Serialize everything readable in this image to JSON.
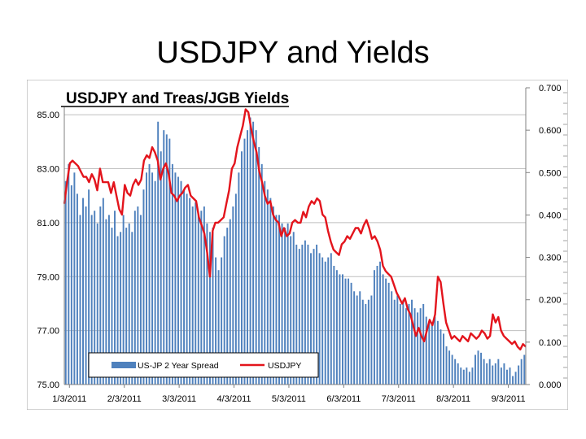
{
  "slide": {
    "title": "USDJPY and Yields"
  },
  "chart_data": {
    "type": "bar+line",
    "title": "USDJPY and Treas/JGB Yields",
    "legend": {
      "position": "bottom-center",
      "entries": [
        "US-JP 2 Year Spread",
        "USDJPY"
      ]
    },
    "colors": {
      "bar": "#4F81BD",
      "line": "#E3141C",
      "grid": "#BFBFBF",
      "axis": "#808080"
    },
    "x_labels": [
      "1/3/2011",
      "2/3/2011",
      "3/3/2011",
      "4/3/2011",
      "5/3/2011",
      "6/3/2011",
      "7/3/2011",
      "8/3/2011",
      "9/3/2011"
    ],
    "y_left": {
      "label": "USDJPY",
      "min": 75,
      "max": 86,
      "ticks": [
        "75.00",
        "77.00",
        "79.00",
        "81.00",
        "83.00",
        "85.00"
      ],
      "tick_values": [
        75,
        77,
        79,
        81,
        83,
        85
      ]
    },
    "y_right": {
      "label": "US-JP 2 Year Spread",
      "min": 0,
      "max": 0.7,
      "ticks": [
        "0.000",
        "0.100",
        "0.200",
        "0.300",
        "0.400",
        "0.500",
        "0.600",
        "0.700"
      ],
      "tick_values": [
        0,
        0.1,
        0.2,
        0.3,
        0.4,
        0.5,
        0.6,
        0.7
      ]
    },
    "usdjpy_path": [
      [
        0,
        81.7
      ],
      [
        1,
        82.5
      ],
      [
        2,
        83.2
      ],
      [
        3,
        83.3
      ],
      [
        5,
        83.1
      ],
      [
        6,
        82.9
      ],
      [
        7,
        82.7
      ],
      [
        8,
        82.7
      ],
      [
        9,
        82.5
      ],
      [
        10,
        82.8
      ],
      [
        11,
        82.6
      ],
      [
        12,
        82.2
      ],
      [
        13,
        83.0
      ],
      [
        14,
        82.5
      ],
      [
        16,
        82.5
      ],
      [
        17,
        82.1
      ],
      [
        18,
        82.5
      ],
      [
        19,
        82.0
      ],
      [
        20,
        81.5
      ],
      [
        21,
        81.3
      ],
      [
        22,
        82.4
      ],
      [
        23,
        82.1
      ],
      [
        24,
        82.0
      ],
      [
        25,
        82.4
      ],
      [
        26,
        82.6
      ],
      [
        27,
        82.4
      ],
      [
        28,
        82.6
      ],
      [
        29,
        83.3
      ],
      [
        30,
        83.5
      ],
      [
        31,
        83.4
      ],
      [
        32,
        83.8
      ],
      [
        33,
        83.6
      ],
      [
        34,
        83.3
      ],
      [
        35,
        82.6
      ],
      [
        36,
        83.0
      ],
      [
        37,
        83.2
      ],
      [
        38,
        82.8
      ],
      [
        39,
        82.1
      ],
      [
        40,
        82.0
      ],
      [
        41,
        81.8
      ],
      [
        42,
        82.0
      ],
      [
        43,
        82.1
      ],
      [
        44,
        82.3
      ],
      [
        45,
        82.4
      ],
      [
        46,
        82.0
      ],
      [
        47,
        81.9
      ],
      [
        48,
        81.8
      ],
      [
        49,
        81.2
      ],
      [
        50,
        80.9
      ],
      [
        51,
        80.6
      ],
      [
        52,
        79.9
      ],
      [
        53,
        79.0
      ],
      [
        54,
        80.7
      ],
      [
        55,
        81.0
      ],
      [
        56,
        81.0
      ],
      [
        57,
        81.1
      ],
      [
        58,
        81.2
      ],
      [
        59,
        81.7
      ],
      [
        60,
        82.2
      ],
      [
        61,
        83.0
      ],
      [
        62,
        83.2
      ],
      [
        63,
        83.8
      ],
      [
        64,
        84.2
      ],
      [
        65,
        84.6
      ],
      [
        66,
        85.2
      ],
      [
        67,
        85.1
      ],
      [
        68,
        84.5
      ],
      [
        69,
        84.0
      ],
      [
        70,
        83.6
      ],
      [
        71,
        82.9
      ],
      [
        72,
        82.5
      ],
      [
        73,
        82.0
      ],
      [
        74,
        81.7
      ],
      [
        75,
        81.8
      ],
      [
        76,
        81.3
      ],
      [
        77,
        81.1
      ],
      [
        78,
        81.0
      ],
      [
        79,
        80.5
      ],
      [
        80,
        80.8
      ],
      [
        81,
        80.5
      ],
      [
        82,
        80.6
      ],
      [
        83,
        81.0
      ],
      [
        84,
        81.1
      ],
      [
        85,
        81.0
      ],
      [
        86,
        81.0
      ],
      [
        87,
        81.4
      ],
      [
        88,
        81.2
      ],
      [
        89,
        81.6
      ],
      [
        90,
        81.8
      ],
      [
        91,
        81.7
      ],
      [
        92,
        81.9
      ],
      [
        93,
        81.8
      ],
      [
        94,
        81.3
      ],
      [
        95,
        81.2
      ],
      [
        96,
        80.7
      ],
      [
        97,
        80.3
      ],
      [
        98,
        80.0
      ],
      [
        99,
        79.9
      ],
      [
        100,
        79.8
      ],
      [
        101,
        80.2
      ],
      [
        102,
        80.3
      ],
      [
        103,
        80.5
      ],
      [
        104,
        80.4
      ],
      [
        105,
        80.6
      ],
      [
        106,
        80.8
      ],
      [
        107,
        80.8
      ],
      [
        108,
        80.6
      ],
      [
        109,
        80.9
      ],
      [
        110,
        81.1
      ],
      [
        111,
        80.8
      ],
      [
        112,
        80.4
      ],
      [
        113,
        80.5
      ],
      [
        114,
        80.3
      ],
      [
        115,
        80.0
      ],
      [
        116,
        79.4
      ],
      [
        117,
        79.2
      ],
      [
        118,
        79.1
      ],
      [
        119,
        79.0
      ],
      [
        120,
        78.7
      ],
      [
        121,
        78.4
      ],
      [
        122,
        78.2
      ],
      [
        123,
        78.0
      ],
      [
        124,
        78.2
      ],
      [
        125,
        77.8
      ],
      [
        126,
        77.6
      ],
      [
        127,
        77.2
      ],
      [
        128,
        76.8
      ],
      [
        129,
        77.1
      ],
      [
        130,
        76.8
      ],
      [
        131,
        76.6
      ],
      [
        132,
        77.0
      ],
      [
        133,
        77.4
      ],
      [
        134,
        77.2
      ],
      [
        135,
        77.6
      ],
      [
        136,
        79.0
      ],
      [
        137,
        78.8
      ],
      [
        138,
        78.0
      ],
      [
        139,
        77.3
      ],
      [
        140,
        77.0
      ],
      [
        141,
        76.7
      ],
      [
        142,
        76.8
      ],
      [
        143,
        76.7
      ],
      [
        144,
        76.6
      ],
      [
        145,
        76.8
      ],
      [
        146,
        76.7
      ],
      [
        147,
        76.6
      ],
      [
        148,
        76.9
      ],
      [
        149,
        76.8
      ],
      [
        150,
        76.7
      ],
      [
        151,
        76.8
      ],
      [
        152,
        77.0
      ],
      [
        153,
        76.9
      ],
      [
        154,
        76.7
      ],
      [
        155,
        76.8
      ],
      [
        156,
        77.6
      ],
      [
        157,
        77.3
      ],
      [
        158,
        77.5
      ],
      [
        159,
        77.0
      ],
      [
        160,
        76.8
      ],
      [
        161,
        76.7
      ],
      [
        162,
        76.6
      ],
      [
        163,
        76.5
      ],
      [
        164,
        76.6
      ],
      [
        165,
        76.4
      ],
      [
        166,
        76.3
      ],
      [
        167,
        76.5
      ],
      [
        168,
        76.4
      ]
    ],
    "spread_bars": [
      0.48,
      0.52,
      0.47,
      0.5,
      0.45,
      0.4,
      0.44,
      0.42,
      0.46,
      0.4,
      0.41,
      0.38,
      0.42,
      0.44,
      0.39,
      0.4,
      0.37,
      0.41,
      0.35,
      0.36,
      0.4,
      0.37,
      0.38,
      0.36,
      0.41,
      0.42,
      0.4,
      0.46,
      0.5,
      0.52,
      0.5,
      0.48,
      0.62,
      0.55,
      0.6,
      0.59,
      0.58,
      0.52,
      0.5,
      0.49,
      0.48,
      0.46,
      0.45,
      0.44,
      0.42,
      0.43,
      0.4,
      0.41,
      0.42,
      0.38,
      0.36,
      0.37,
      0.3,
      0.27,
      0.3,
      0.35,
      0.37,
      0.39,
      0.42,
      0.45,
      0.5,
      0.55,
      0.58,
      0.6,
      0.63,
      0.62,
      0.6,
      0.56,
      0.52,
      0.48,
      0.46,
      0.44,
      0.42,
      0.4,
      0.4,
      0.38,
      0.37,
      0.38,
      0.35,
      0.36,
      0.33,
      0.32,
      0.33,
      0.34,
      0.33,
      0.31,
      0.32,
      0.33,
      0.31,
      0.3,
      0.29,
      0.3,
      0.31,
      0.28,
      0.27,
      0.26,
      0.26,
      0.25,
      0.25,
      0.24,
      0.22,
      0.21,
      0.22,
      0.2,
      0.19,
      0.2,
      0.21,
      0.27,
      0.28,
      0.29,
      0.26,
      0.25,
      0.24,
      0.22,
      0.2,
      0.21,
      0.19,
      0.2,
      0.18,
      0.19,
      0.2,
      0.18,
      0.17,
      0.18,
      0.19,
      0.16,
      0.15,
      0.14,
      0.16,
      0.15,
      0.13,
      0.12,
      0.09,
      0.08,
      0.07,
      0.06,
      0.05,
      0.04,
      0.035,
      0.04,
      0.03,
      0.04,
      0.07,
      0.08,
      0.075,
      0.06,
      0.05,
      0.06,
      0.045,
      0.05,
      0.06,
      0.04,
      0.05,
      0.035,
      0.04,
      0.02,
      0.03,
      0.045,
      0.06,
      0.07
    ]
  }
}
